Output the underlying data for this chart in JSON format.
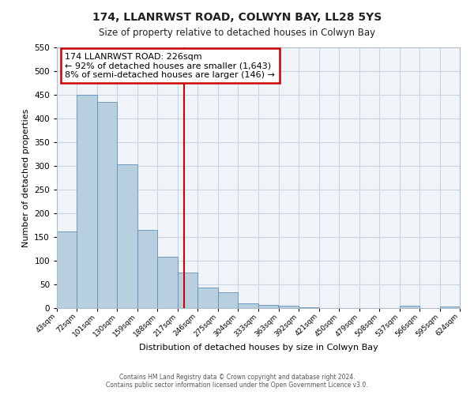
{
  "title": "174, LLANRWST ROAD, COLWYN BAY, LL28 5YS",
  "subtitle": "Size of property relative to detached houses in Colwyn Bay",
  "xlabel": "Distribution of detached houses by size in Colwyn Bay",
  "ylabel": "Number of detached properties",
  "bar_color": "#b8cfe0",
  "bar_edge_color": "#6090b8",
  "grid_color": "#c8d4e0",
  "background_color": "#ffffff",
  "plot_bg_color": "#f0f4f8",
  "vline_color": "#cc0000",
  "annotation_title": "174 LLANRWST ROAD: 226sqm",
  "annotation_line1": "← 92% of detached houses are smaller (1,643)",
  "annotation_line2": "8% of semi-detached houses are larger (146) →",
  "annotation_box_edge_color": "#cc0000",
  "bin_edges": [
    43,
    72,
    101,
    130,
    159,
    188,
    217,
    246,
    275,
    304,
    333,
    363,
    392,
    421,
    450,
    479,
    508,
    537,
    566,
    595,
    624
  ],
  "bin_labels": [
    "43sqm",
    "72sqm",
    "101sqm",
    "130sqm",
    "159sqm",
    "188sqm",
    "217sqm",
    "246sqm",
    "275sqm",
    "304sqm",
    "333sqm",
    "363sqm",
    "392sqm",
    "421sqm",
    "450sqm",
    "479sqm",
    "508sqm",
    "537sqm",
    "566sqm",
    "595sqm",
    "624sqm"
  ],
  "bar_heights": [
    162,
    450,
    435,
    303,
    165,
    108,
    75,
    43,
    33,
    10,
    7,
    5,
    1,
    0,
    0,
    0,
    0,
    5,
    0,
    3
  ],
  "vline_x": 226,
  "ylim": [
    0,
    550
  ],
  "yticks": [
    0,
    50,
    100,
    150,
    200,
    250,
    300,
    350,
    400,
    450,
    500,
    550
  ],
  "footer_line1": "Contains HM Land Registry data © Crown copyright and database right 2024.",
  "footer_line2": "Contains public sector information licensed under the Open Government Licence v3.0."
}
